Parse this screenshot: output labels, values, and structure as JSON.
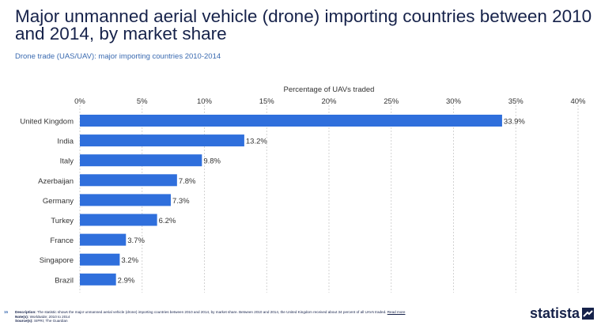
{
  "page": {
    "title": "Major unmanned aerial vehicle (drone) importing countries between 2010 and 2014, by market share",
    "subtitle": "Drone trade (UAS/UAV): major importing countries 2010-2014",
    "page_number": "15",
    "footer": {
      "description_label": "Description:",
      "description": "The statistic shows the major unmanned aerial vehicle (drone) importing countries between 2010 and 2014, by market share. Between 2010 and 2014, the United Kingdom received about 34 percent of all UAVs traded.",
      "read_more": "Read more",
      "notes_label": "Note(s):",
      "notes": "Worldwide; 2010 to 2014",
      "sources_label": "Source(s):",
      "sources": "SIPRI; The Guardian"
    },
    "brand": "statista"
  },
  "colors": {
    "bar": "#2f6fdc",
    "title": "#16224a",
    "accent": "#3a6ab0"
  },
  "chart_data": {
    "type": "bar",
    "orientation": "horizontal",
    "title": "Major unmanned aerial vehicle (drone) importing countries between 2010 and 2014, by market share",
    "xlabel": "Percentage of UAVs traded",
    "ylabel": "",
    "xlim": [
      0,
      40
    ],
    "ticks": [
      0,
      5,
      10,
      15,
      20,
      25,
      30,
      35,
      40
    ],
    "tick_labels": [
      "0%",
      "5%",
      "10%",
      "15%",
      "20%",
      "25%",
      "30%",
      "35%",
      "40%"
    ],
    "categories": [
      "United Kingdom",
      "India",
      "Italy",
      "Azerbaijan",
      "Germany",
      "Turkey",
      "France",
      "Singapore",
      "Brazil"
    ],
    "values": [
      33.9,
      13.2,
      9.8,
      7.8,
      7.3,
      6.2,
      3.7,
      3.2,
      2.9
    ],
    "value_labels": [
      "33.9%",
      "13.2%",
      "9.8%",
      "7.8%",
      "7.3%",
      "6.2%",
      "3.7%",
      "3.2%",
      "2.9%"
    ],
    "grid": true
  }
}
